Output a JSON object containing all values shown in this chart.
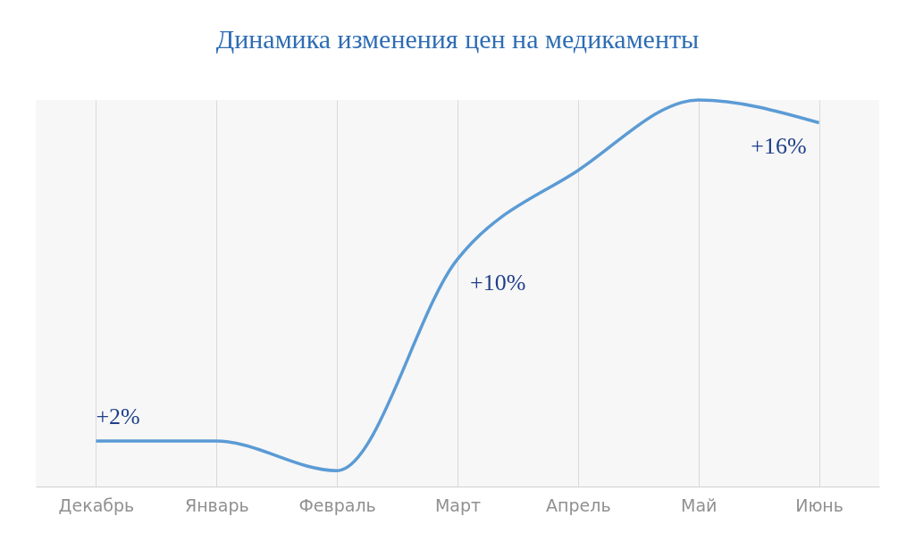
{
  "chart_data": {
    "type": "line",
    "title": "Динамика изменения цен на медикаменты",
    "categories": [
      "Декабрь",
      "Январь",
      "Февраль",
      "Март",
      "Апрель",
      "Май",
      "Июнь"
    ],
    "series": [
      {
        "color": "#5b9bd5",
        "values": [
          2,
          2,
          0.7,
          10,
          13.9,
          17,
          16
        ],
        "value_labels": [
          "+2%",
          null,
          null,
          "+10%",
          null,
          null,
          "+16%"
        ]
      }
    ],
    "grid": "x",
    "tick_labels": "x",
    "marker": "none",
    "line_style": "solid"
  }
}
